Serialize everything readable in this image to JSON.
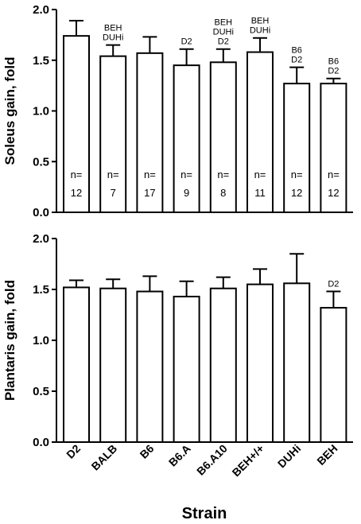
{
  "chart_data": [
    {
      "type": "bar",
      "categories": [
        "D2",
        "BALB",
        "B6",
        "B6.A",
        "B6.A10",
        "BEH+/+",
        "DUHi",
        "BEH"
      ],
      "values": [
        1.74,
        1.54,
        1.57,
        1.45,
        1.48,
        1.58,
        1.27,
        1.27
      ],
      "error_upper": [
        1.89,
        1.65,
        1.73,
        1.61,
        1.61,
        1.72,
        1.43,
        1.32
      ],
      "annotations": [
        [],
        [
          "BEH",
          "DUHi"
        ],
        [],
        [
          "D2"
        ],
        [
          "BEH",
          "DUHi",
          "D2"
        ],
        [
          "BEH",
          "DUHi"
        ],
        [
          "B6",
          "D2"
        ],
        [
          "B6",
          "D2"
        ]
      ],
      "n_labels": [
        {
          "top": "n=",
          "bottom": "12"
        },
        {
          "top": "n=",
          "bottom": "7"
        },
        {
          "top": "n=",
          "bottom": "17"
        },
        {
          "top": "n=",
          "bottom": "9"
        },
        {
          "top": "n=",
          "bottom": "8"
        },
        {
          "top": "n=",
          "bottom": "11"
        },
        {
          "top": "n=",
          "bottom": "12"
        },
        {
          "top": "n=",
          "bottom": "12"
        }
      ],
      "ylabel": "Soleus gain, fold",
      "ylim": [
        0,
        2.0
      ],
      "yticks": [
        "0.0",
        "0.5",
        "1.0",
        "1.5",
        "2.0"
      ]
    },
    {
      "type": "bar",
      "categories": [
        "D2",
        "BALB",
        "B6",
        "B6.A",
        "B6.A10",
        "BEH+/+",
        "DUHi",
        "BEH"
      ],
      "values": [
        1.52,
        1.51,
        1.48,
        1.43,
        1.51,
        1.55,
        1.56,
        1.32
      ],
      "error_upper": [
        1.59,
        1.6,
        1.63,
        1.58,
        1.62,
        1.7,
        1.85,
        1.48
      ],
      "annotations": [
        [],
        [],
        [],
        [],
        [],
        [],
        [],
        [
          "D2"
        ]
      ],
      "ylabel": "Plantaris gain, fold",
      "ylim": [
        0,
        2.0
      ],
      "yticks": [
        "0.0",
        "0.5",
        "1.0",
        "1.5",
        "2.0"
      ]
    }
  ],
  "xlabel": "Strain",
  "x_tick_labels": [
    "D2",
    "BALB",
    "B6",
    "B6.A",
    "B6.A10",
    "BEH+/+",
    "DUHi",
    "BEH"
  ]
}
